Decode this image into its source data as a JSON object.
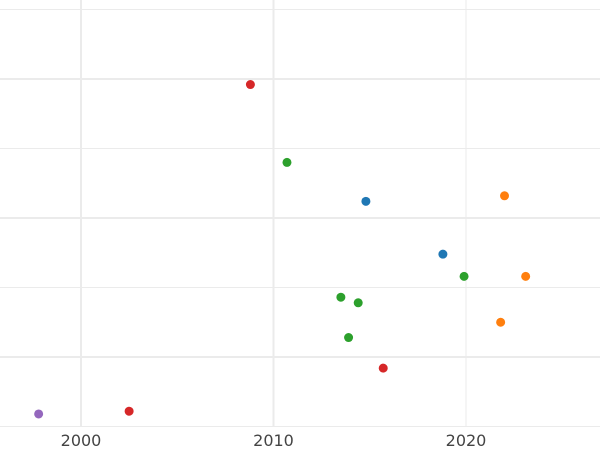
{
  "chart_data": {
    "type": "scatter",
    "title": "",
    "xlabel": "",
    "ylabel": "",
    "xlim": [
      1995.8,
      2027.0
    ],
    "ylim": [
      -0.5,
      2.57
    ],
    "x_ticks": [
      2000,
      2010,
      2020
    ],
    "x_tick_labels": [
      "2000",
      "2010",
      "2020"
    ],
    "y_gridlines": [
      -0.5,
      0,
      0.5,
      1,
      1.5,
      2,
      2.5
    ],
    "y_tick_labels": [],
    "grid": true,
    "legend": "none",
    "series": [
      {
        "color": "#1f77b4",
        "points": [
          {
            "x": 2014.8,
            "y": 1.12
          },
          {
            "x": 2018.8,
            "y": 0.74
          }
        ]
      },
      {
        "color": "#ff7f0e",
        "points": [
          {
            "x": 2022.0,
            "y": 1.16
          },
          {
            "x": 2023.1,
            "y": 0.58
          },
          {
            "x": 2021.8,
            "y": 0.25
          }
        ]
      },
      {
        "color": "#2ca02c",
        "points": [
          {
            "x": 2010.7,
            "y": 1.4
          },
          {
            "x": 2019.9,
            "y": 0.58
          },
          {
            "x": 2013.5,
            "y": 0.43
          },
          {
            "x": 2014.4,
            "y": 0.39
          },
          {
            "x": 2013.9,
            "y": 0.14
          }
        ]
      },
      {
        "color": "#d62728",
        "points": [
          {
            "x": 2008.8,
            "y": 1.96
          },
          {
            "x": 2015.7,
            "y": -0.08
          },
          {
            "x": 2002.5,
            "y": -0.39
          }
        ]
      },
      {
        "color": "#9467bd",
        "points": [
          {
            "x": 1997.8,
            "y": -0.41
          }
        ]
      }
    ]
  }
}
